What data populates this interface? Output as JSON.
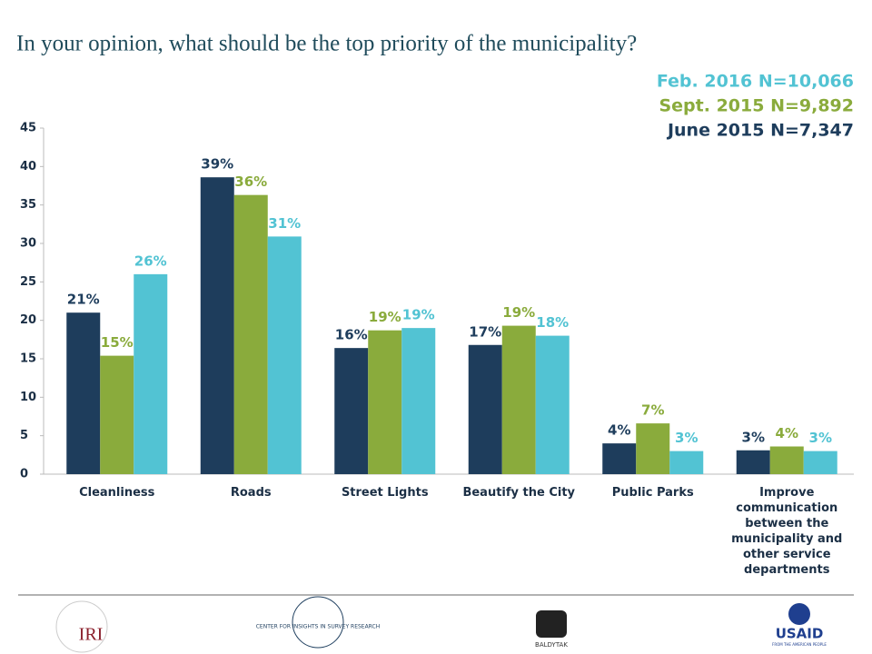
{
  "chart_data": {
    "type": "bar",
    "title": "In your opinion, what should be the top priority of the municipality?",
    "categories": [
      "Cleanliness",
      "Roads",
      "Street Lights",
      "Beautify the City",
      "Public Parks",
      "Improve communication between the municipality and other service departments"
    ],
    "series": [
      {
        "name": "June 2015 N=7,347",
        "color": "#1e3d5c",
        "values": [
          21,
          38.6,
          16.4,
          16.8,
          4,
          3.1
        ],
        "value_labels": [
          "21%",
          "39%",
          "16%",
          "17%",
          "4%",
          "3%"
        ]
      },
      {
        "name": "Sept. 2015 N=9,892",
        "color": "#8aab3c",
        "values": [
          15.4,
          36.3,
          18.7,
          19.3,
          6.6,
          3.6
        ],
        "value_labels": [
          "15%",
          "36%",
          "19%",
          "19%",
          "7%",
          "4%"
        ]
      },
      {
        "name": "Feb. 2016 N=10,066",
        "color": "#52c3d3",
        "values": [
          26,
          30.9,
          19,
          18,
          3,
          3
        ],
        "value_labels": [
          "26%",
          "31%",
          "19%",
          "18%",
          "3%",
          "3%"
        ]
      }
    ],
    "ylim": [
      0,
      45
    ],
    "yticks": [
      0,
      5,
      10,
      15,
      20,
      25,
      30,
      35,
      40,
      45
    ],
    "grid": false
  },
  "footer": {
    "logos": [
      "IRI",
      "CENTER FOR INSIGHTS IN SURVEY RESEARCH",
      "BALDYTAK",
      "USAID",
      "FROM THE AMERICAN PEOPLE"
    ]
  }
}
